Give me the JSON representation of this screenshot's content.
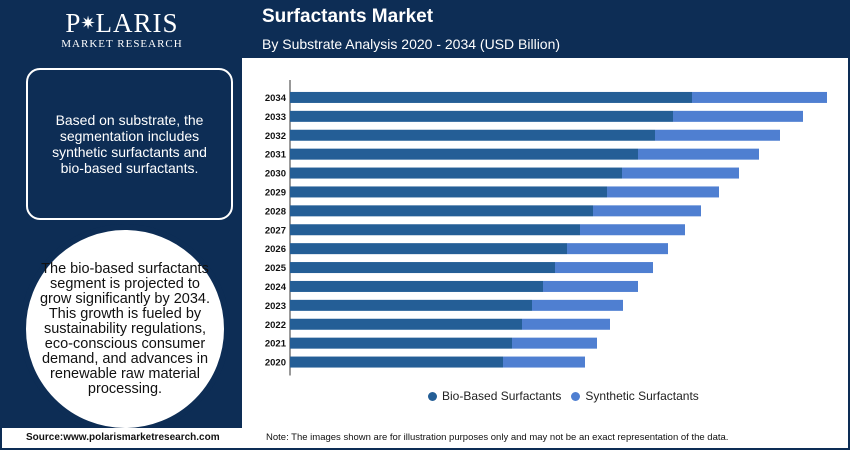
{
  "brand": {
    "name_prefix": "P",
    "name_suffix": "LARIS",
    "tagline": "MARKET RESEARCH"
  },
  "header": {
    "title": "Surfactants Market",
    "subtitle": "By Substrate Analysis 2020 - 2034 (USD Billion)"
  },
  "panel": {
    "box_text": "Based on substrate, the segmentation includes synthetic surfactants and bio-based surfactants.",
    "circle_text": "The bio-based surfactants segment is projected to grow significantly by 2034. This growth is fueled by sustainability regulations, eco-conscious consumer demand, and advances in renewable raw material processing."
  },
  "footer": {
    "source": "Source:www.polarismarketresearch.com",
    "note": "Note: The images shown are for illustration purposes only and may not be an exact representation of the data."
  },
  "colors": {
    "navy": "#0d2d55",
    "bio": "#245e96",
    "synthetic": "#4f7fd1"
  },
  "chart_data": {
    "type": "bar",
    "orientation": "horizontal",
    "stacked": true,
    "categories": [
      "2034",
      "2033",
      "2032",
      "2031",
      "2030",
      "2029",
      "2028",
      "2027",
      "2026",
      "2025",
      "2024",
      "2023",
      "2022",
      "2021",
      "2020"
    ],
    "series": [
      {
        "name": "Bio-Based Surfactants",
        "color": "#245e96",
        "values": [
          40.2,
          38.3,
          36.5,
          34.8,
          33.2,
          31.7,
          30.3,
          29.0,
          27.7,
          26.5,
          25.3,
          24.2,
          23.2,
          22.2,
          21.3
        ]
      },
      {
        "name": "Synthetic Surfactants",
        "color": "#4f7fd1",
        "values": [
          13.5,
          13.0,
          12.5,
          12.1,
          11.7,
          11.2,
          10.8,
          10.5,
          10.1,
          9.8,
          9.5,
          9.1,
          8.8,
          8.5,
          8.2
        ]
      }
    ],
    "xlim": [
      0,
      54
    ],
    "grid": false,
    "legend": "bottom"
  }
}
